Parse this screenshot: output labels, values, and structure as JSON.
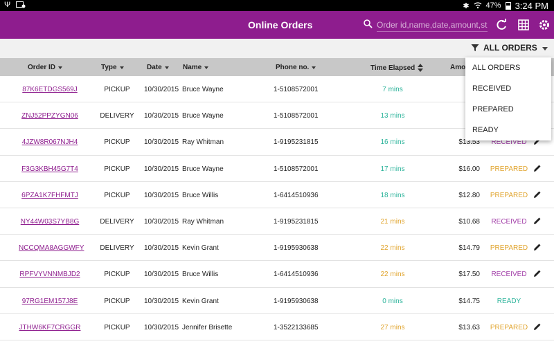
{
  "status_bar": {
    "time": "3:24 PM",
    "battery": "47%"
  },
  "app": {
    "title": "Online Orders"
  },
  "search": {
    "placeholder": "Order id,name,date,amount,st..."
  },
  "filter": {
    "label": "ALL ORDERS",
    "options": [
      "ALL ORDERS",
      "RECEIVED",
      "PREPARED",
      "READY"
    ]
  },
  "columns": {
    "order_id": "Order ID",
    "type": "Type",
    "date": "Date",
    "name": "Name",
    "phone": "Phone no.",
    "time_elapsed": "Time Elapsed",
    "amount": "Amou"
  },
  "colors": {
    "accent": "#8e1d8e",
    "elapsed_green": "#2bb39a",
    "elapsed_orange": "#e0a32b",
    "status_received": "#a03aa6",
    "status_prepared": "#e0a32b",
    "status_ready": "#2bb39a"
  },
  "orders": [
    {
      "id": "87K6ETDGS569J",
      "type": "PICKUP",
      "date": "10/30/2015",
      "name": "Bruce Wayne",
      "phone": "1-5108572001",
      "elapsed": "7 mins",
      "elapsed_color": "green",
      "amount": "",
      "status": "",
      "editable": false
    },
    {
      "id": "ZNJ52PPZYGN06",
      "type": "DELIVERY",
      "date": "10/30/2015",
      "name": "Bruce Wayne",
      "phone": "1-5108572001",
      "elapsed": "13 mins",
      "elapsed_color": "green",
      "amount": "$",
      "status": "",
      "editable": false
    },
    {
      "id": "4JZW8R067NJH4",
      "type": "PICKUP",
      "date": "10/30/2015",
      "name": "Ray Whitman",
      "phone": "1-9195231815",
      "elapsed": "16 mins",
      "elapsed_color": "green",
      "amount": "$13.53",
      "status": "RECEIVED",
      "editable": true
    },
    {
      "id": "F3G3KBH45G7T4",
      "type": "PICKUP",
      "date": "10/30/2015",
      "name": "Bruce Wayne",
      "phone": "1-5108572001",
      "elapsed": "17 mins",
      "elapsed_color": "green",
      "amount": "$16.00",
      "status": "PREPARED",
      "editable": true
    },
    {
      "id": "6PZA1K7FHFMTJ",
      "type": "PICKUP",
      "date": "10/30/2015",
      "name": "Bruce Willis",
      "phone": "1-6414510936",
      "elapsed": "18 mins",
      "elapsed_color": "green",
      "amount": "$12.80",
      "status": "PREPARED",
      "editable": true
    },
    {
      "id": "NY44W03S7YB8G",
      "type": "DELIVERY",
      "date": "10/30/2015",
      "name": "Ray Whitman",
      "phone": "1-9195231815",
      "elapsed": "21 mins",
      "elapsed_color": "orange",
      "amount": "$10.68",
      "status": "RECEIVED",
      "editable": true
    },
    {
      "id": "NCCQMA8AGGWFY",
      "type": "DELIVERY",
      "date": "10/30/2015",
      "name": "Kevin Grant",
      "phone": "1-9195930638",
      "elapsed": "22 mins",
      "elapsed_color": "orange",
      "amount": "$14.79",
      "status": "PREPARED",
      "editable": true
    },
    {
      "id": "RPFVYVNNMBJD2",
      "type": "PICKUP",
      "date": "10/30/2015",
      "name": "Bruce Willis",
      "phone": "1-6414510936",
      "elapsed": "22 mins",
      "elapsed_color": "orange",
      "amount": "$17.50",
      "status": "RECEIVED",
      "editable": true
    },
    {
      "id": "97RG1EM157J8E",
      "type": "PICKUP",
      "date": "10/30/2015",
      "name": "Kevin Grant",
      "phone": "1-9195930638",
      "elapsed": "0 mins",
      "elapsed_color": "green",
      "amount": "$14.75",
      "status": "READY",
      "editable": false
    },
    {
      "id": "JTHW6KF7CRGGR",
      "type": "PICKUP",
      "date": "10/30/2015",
      "name": "Jennifer Brisette",
      "phone": "1-3522133685",
      "elapsed": "27 mins",
      "elapsed_color": "orange",
      "amount": "$13.63",
      "status": "PREPARED",
      "editable": true
    }
  ]
}
